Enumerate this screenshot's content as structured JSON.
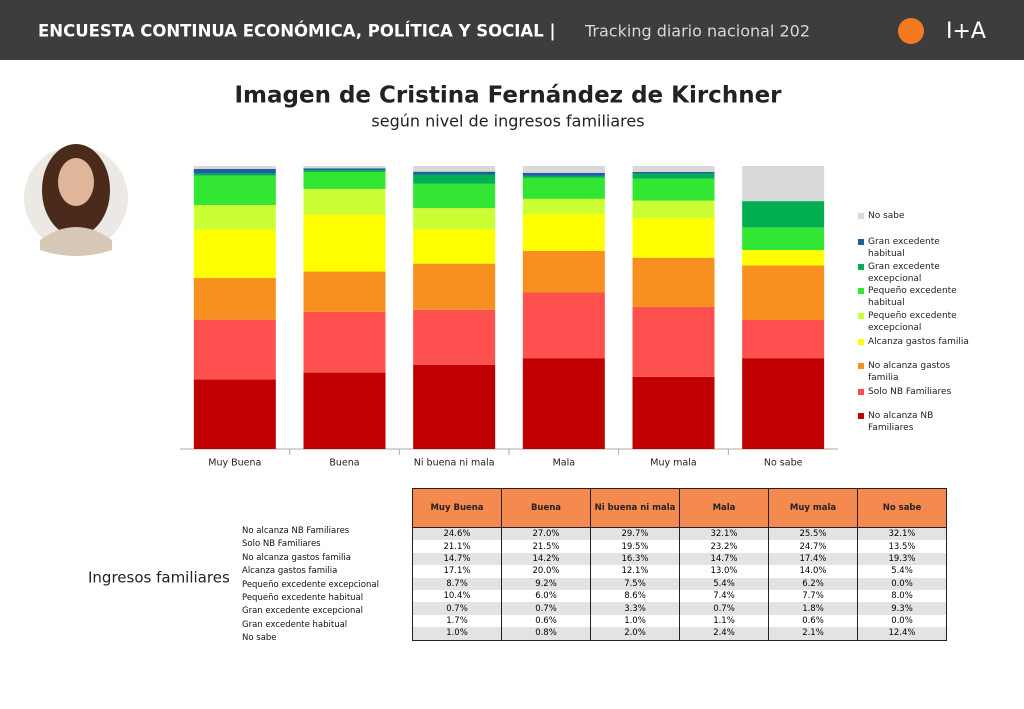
{
  "header": {
    "title": "ENCUESTA CONTINUA ECONÓMICA, POLÍTICA Y SOCIAL |",
    "subtitle": "Tracking diario nacional 202",
    "logo": "I+A"
  },
  "chart_data": {
    "type": "bar",
    "stacked": true,
    "title": "Imagen de Cristina Fernández de Kirchner",
    "subtitle": "según nivel de ingresos familiares",
    "categories": [
      "Muy Buena",
      "Buena",
      "Ni buena ni mala",
      "Mala",
      "Muy mala",
      "No sabe"
    ],
    "ylim": [
      0,
      100
    ],
    "series": [
      {
        "name": "No alcanza NB Familiares",
        "color": "#c00000",
        "values": [
          24.6,
          27.0,
          29.7,
          32.1,
          25.5,
          32.1
        ]
      },
      {
        "name": "Solo NB Familiares",
        "color": "#ff5050",
        "values": [
          21.1,
          21.5,
          19.5,
          23.2,
          24.7,
          13.5
        ]
      },
      {
        "name": "No alcanza gastos familia",
        "color": "#f7901e",
        "values": [
          14.7,
          14.2,
          16.3,
          14.7,
          17.4,
          19.3
        ]
      },
      {
        "name": "Alcanza gastos familia",
        "color": "#ffff00",
        "values": [
          17.1,
          20.0,
          12.1,
          13.0,
          14.0,
          5.4
        ]
      },
      {
        "name": "Pequeño excedente excepcional",
        "color": "#ccff33",
        "values": [
          8.7,
          9.2,
          7.5,
          5.4,
          6.2,
          0.0
        ]
      },
      {
        "name": "Pequeño excedente habitual",
        "color": "#33e633",
        "values": [
          10.4,
          6.0,
          8.6,
          7.4,
          7.7,
          8.0
        ]
      },
      {
        "name": "Gran excedente excepcional",
        "color": "#00b050",
        "values": [
          0.7,
          0.7,
          3.3,
          0.7,
          1.8,
          9.3
        ]
      },
      {
        "name": "Gran excedente habitual",
        "color": "#1f5fa0",
        "values": [
          1.7,
          0.6,
          1.0,
          1.1,
          0.6,
          0.0
        ]
      },
      {
        "name": "No sabe",
        "color": "#d9d9d9",
        "values": [
          1.0,
          0.8,
          2.0,
          2.4,
          2.1,
          12.4
        ]
      }
    ]
  },
  "table": {
    "caption": "Ingresos familiares",
    "columns": [
      "Muy Buena",
      "Buena",
      "Ni buena ni mala",
      "Mala",
      "Muy mala",
      "No sabe"
    ],
    "rows": [
      {
        "label": "No alcanza NB Familiares",
        "cells": [
          "24.6%",
          "27.0%",
          "29.7%",
          "32.1%",
          "25.5%",
          "32.1%"
        ]
      },
      {
        "label": "Solo NB Familiares",
        "cells": [
          "21.1%",
          "21.5%",
          "19.5%",
          "23.2%",
          "24.7%",
          "13.5%"
        ]
      },
      {
        "label": "No alcanza gastos familia",
        "cells": [
          "14.7%",
          "14.2%",
          "16.3%",
          "14.7%",
          "17.4%",
          "19.3%"
        ]
      },
      {
        "label": "Alcanza gastos familia",
        "cells": [
          "17.1%",
          "20.0%",
          "12.1%",
          "13.0%",
          "14.0%",
          "5.4%"
        ]
      },
      {
        "label": "Pequeño excedente excepcional",
        "cells": [
          "8.7%",
          "9.2%",
          "7.5%",
          "5.4%",
          "6.2%",
          "0.0%"
        ]
      },
      {
        "label": "Pequeño excedente habitual",
        "cells": [
          "10.4%",
          "6.0%",
          "8.6%",
          "7.4%",
          "7.7%",
          "8.0%"
        ]
      },
      {
        "label": "Gran excedente excepcional",
        "cells": [
          "0.7%",
          "0.7%",
          "3.3%",
          "0.7%",
          "1.8%",
          "9.3%"
        ]
      },
      {
        "label": "Gran excedente habitual",
        "cells": [
          "1.7%",
          "0.6%",
          "1.0%",
          "1.1%",
          "0.6%",
          "0.0%"
        ]
      },
      {
        "label": "No sabe",
        "cells": [
          "1.0%",
          "0.8%",
          "2.0%",
          "2.4%",
          "2.1%",
          "12.4%"
        ]
      }
    ]
  }
}
